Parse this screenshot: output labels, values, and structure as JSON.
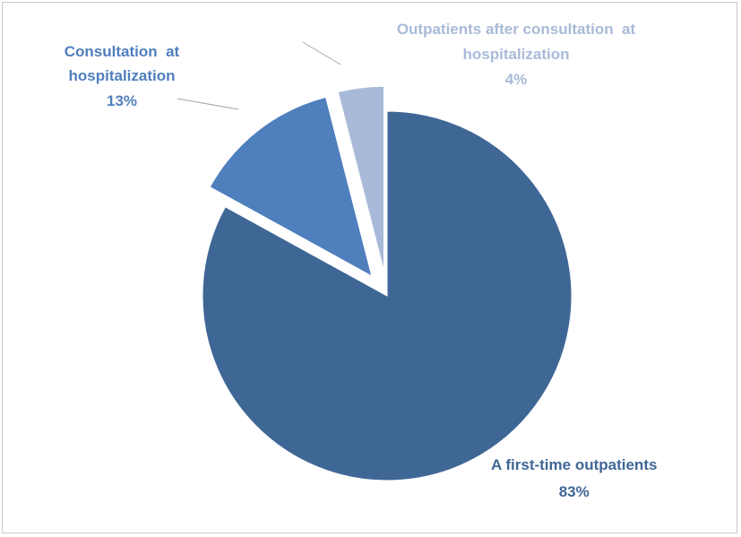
{
  "chart_data": {
    "type": "pie",
    "title": "",
    "slices": [
      {
        "label_lines": [
          "A first-time outpatients"
        ],
        "value": 83,
        "value_label": "83%",
        "color": "#3f6796",
        "exploded": false
      },
      {
        "label_lines": [
          "Consultation  at",
          "hospitalization"
        ],
        "value": 13,
        "value_label": "13%",
        "color": "#4f7fbd",
        "exploded": true
      },
      {
        "label_lines": [
          "Outpatients after consultation  at",
          "hospitalization"
        ],
        "value": 4,
        "value_label": "4%",
        "color": "#a9bad8",
        "exploded": true
      }
    ],
    "legend": "none",
    "data_labels": "outside with leader lines"
  },
  "colors": {
    "label_dark": "#3f6796",
    "label_mid": "#4f7fbd",
    "label_light": "#a9bad8",
    "leader": "#a6a6a6",
    "border": "#c9c9c9"
  }
}
